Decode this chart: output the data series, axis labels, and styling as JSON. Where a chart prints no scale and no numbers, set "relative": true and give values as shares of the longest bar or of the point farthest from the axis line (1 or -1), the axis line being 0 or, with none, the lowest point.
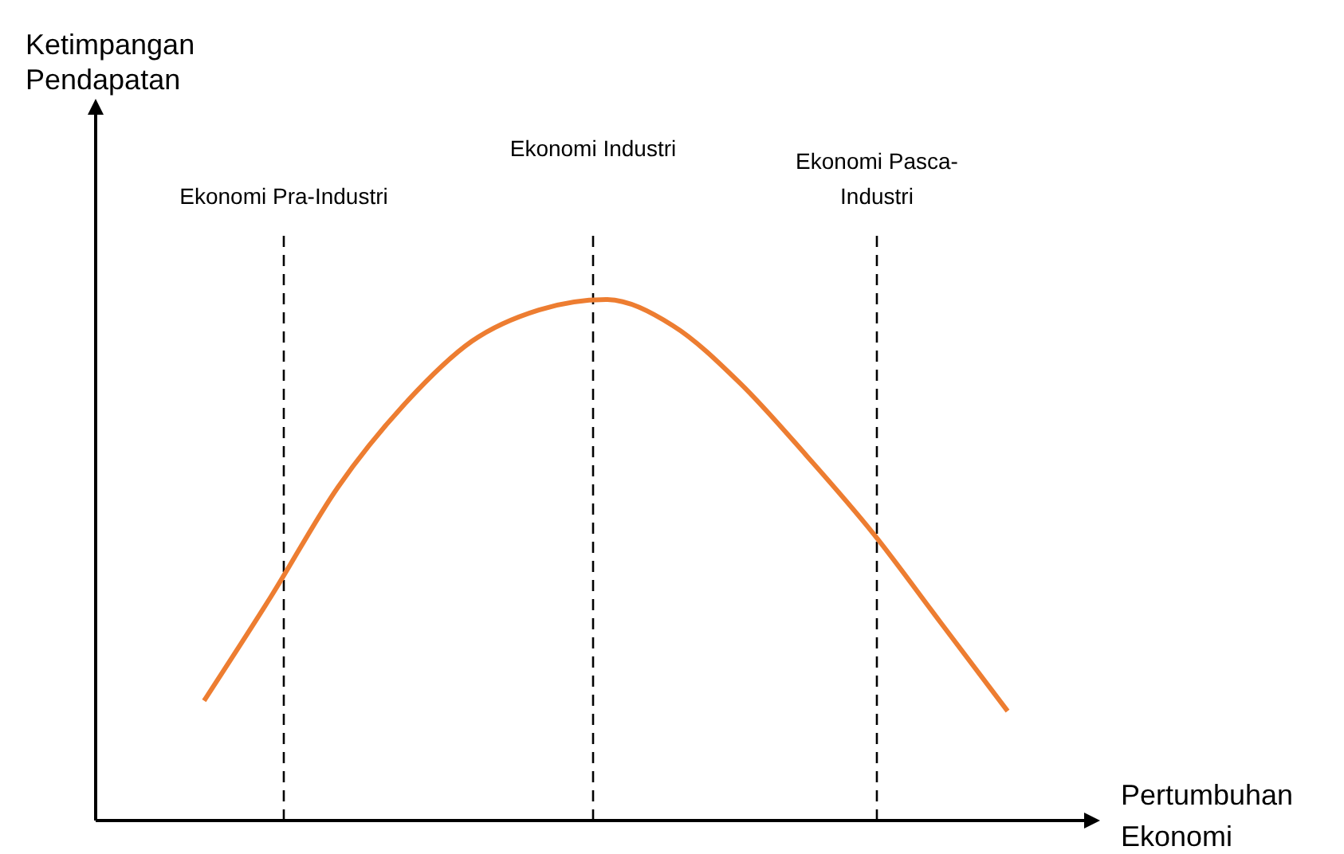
{
  "chart_data": {
    "type": "line",
    "relative": true,
    "xlabel": "Pertumbuhan Ekonomi",
    "categories": [
      null,
      null,
      null,
      null,
      null,
      null,
      null,
      null,
      null,
      null,
      null,
      null,
      null
    ],
    "series": [
      {
        "color": "#ed7d31",
        "values": [
          0.23,
          0.43,
          0.64,
          0.8,
          0.92,
          0.98,
          1,
          0.95,
          0.84,
          0.7,
          0.55,
          0.38,
          0.21
        ]
      }
    ],
    "annotations": [
      "Ekonomi Pra-Industri",
      "Ekonomi Industri",
      "Ekonomi Pasca-Industri",
      "Ketimpangan Pendapatan"
    ],
    "marker": "none",
    "line_style": "solid",
    "grid": false,
    "tick_labels": false
  }
}
